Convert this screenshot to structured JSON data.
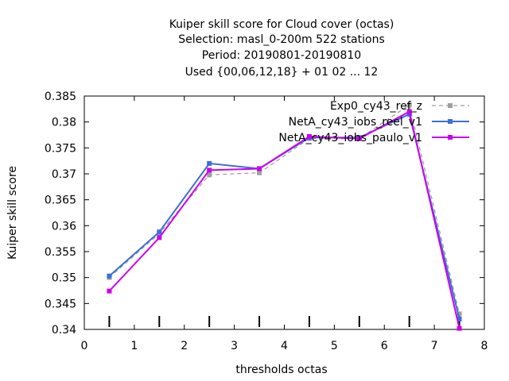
{
  "chart_data": {
    "type": "line",
    "title_lines": [
      "Kuiper skill score  for Cloud cover (octas)",
      "Selection: masl_0-200m    522 stations",
      "Period: 20190801-20190810",
      "Used {00,06,12,18} + 01 02 ... 12"
    ],
    "xlabel": "thresholds octas",
    "ylabel": "Kuiper skill score",
    "xlim": [
      0,
      8
    ],
    "ylim": [
      0.34,
      0.385
    ],
    "xticks": [
      0,
      1,
      2,
      3,
      4,
      5,
      6,
      7,
      8
    ],
    "xtick_labels": [
      "0",
      "1",
      "2",
      "3",
      "4",
      "5",
      "6",
      "7",
      "8"
    ],
    "yticks": [
      0.34,
      0.345,
      0.35,
      0.355,
      0.36,
      0.365,
      0.37,
      0.375,
      0.38,
      0.385
    ],
    "ytick_labels": [
      "0.34",
      "0.345",
      "0.35",
      "0.355",
      "0.36",
      "0.365",
      "0.37",
      "0.375",
      "0.38",
      "0.385"
    ],
    "grid": false,
    "legend_position": "top-right",
    "threshold_markers_x": [
      0.5,
      1.5,
      2.5,
      3.5,
      4.5,
      5.5,
      6.5,
      7.5
    ],
    "series": [
      {
        "name": "Exp0_cy43_ref_z",
        "color": "#a0a0a0",
        "dashed": true,
        "x": [
          0.5,
          1.5,
          2.5,
          3.5,
          4.5,
          5.5,
          6.5,
          7.5
        ],
        "y": [
          0.35,
          0.3585,
          0.3698,
          0.3702,
          0.3768,
          0.3768,
          0.3833,
          0.343
        ]
      },
      {
        "name": "NetA_cy43_iobs_reel_v1",
        "color": "#3a6fd8",
        "dashed": false,
        "x": [
          0.5,
          1.5,
          2.5,
          3.5,
          4.5,
          5.5,
          6.5,
          7.5
        ],
        "y": [
          0.3503,
          0.3588,
          0.372,
          0.371,
          0.377,
          0.377,
          0.3815,
          0.342
        ]
      },
      {
        "name": "NetA_cy43_iobs_paulo_v1",
        "color": "#cc00ee",
        "dashed": false,
        "x": [
          0.5,
          1.5,
          2.5,
          3.5,
          4.5,
          5.5,
          6.5,
          7.5
        ],
        "y": [
          0.3474,
          0.3577,
          0.3707,
          0.371,
          0.3772,
          0.3768,
          0.382,
          0.3402
        ]
      }
    ]
  }
}
